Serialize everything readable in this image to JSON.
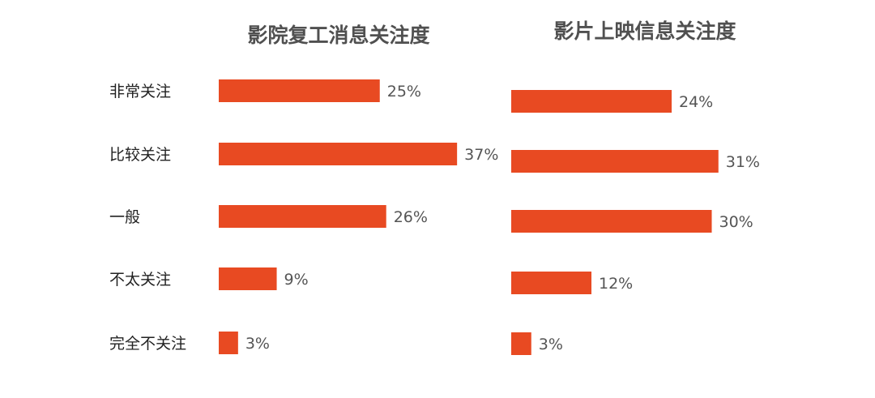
{
  "chart_data": [
    {
      "type": "bar",
      "orientation": "horizontal",
      "title": "影院复工消息关注度",
      "categories": [
        "非常关注",
        "比较关注",
        "一般",
        "不太关注",
        "完全不关注"
      ],
      "values": [
        25,
        37,
        26,
        9,
        3
      ],
      "value_labels": [
        "25%",
        "37%",
        "26%",
        "9%",
        "3%"
      ],
      "unit": "%",
      "grid": false,
      "color": "#E84A22"
    },
    {
      "type": "bar",
      "orientation": "horizontal",
      "title": "影片上映信息关注度",
      "categories": [
        "非常关注",
        "比较关注",
        "一般",
        "不太关注",
        "完全不关注"
      ],
      "values": [
        24,
        31,
        30,
        12,
        3
      ],
      "value_labels": [
        "24%",
        "31%",
        "30%",
        "12%",
        "3%"
      ],
      "unit": "%",
      "grid": false,
      "color": "#E84A22"
    }
  ]
}
